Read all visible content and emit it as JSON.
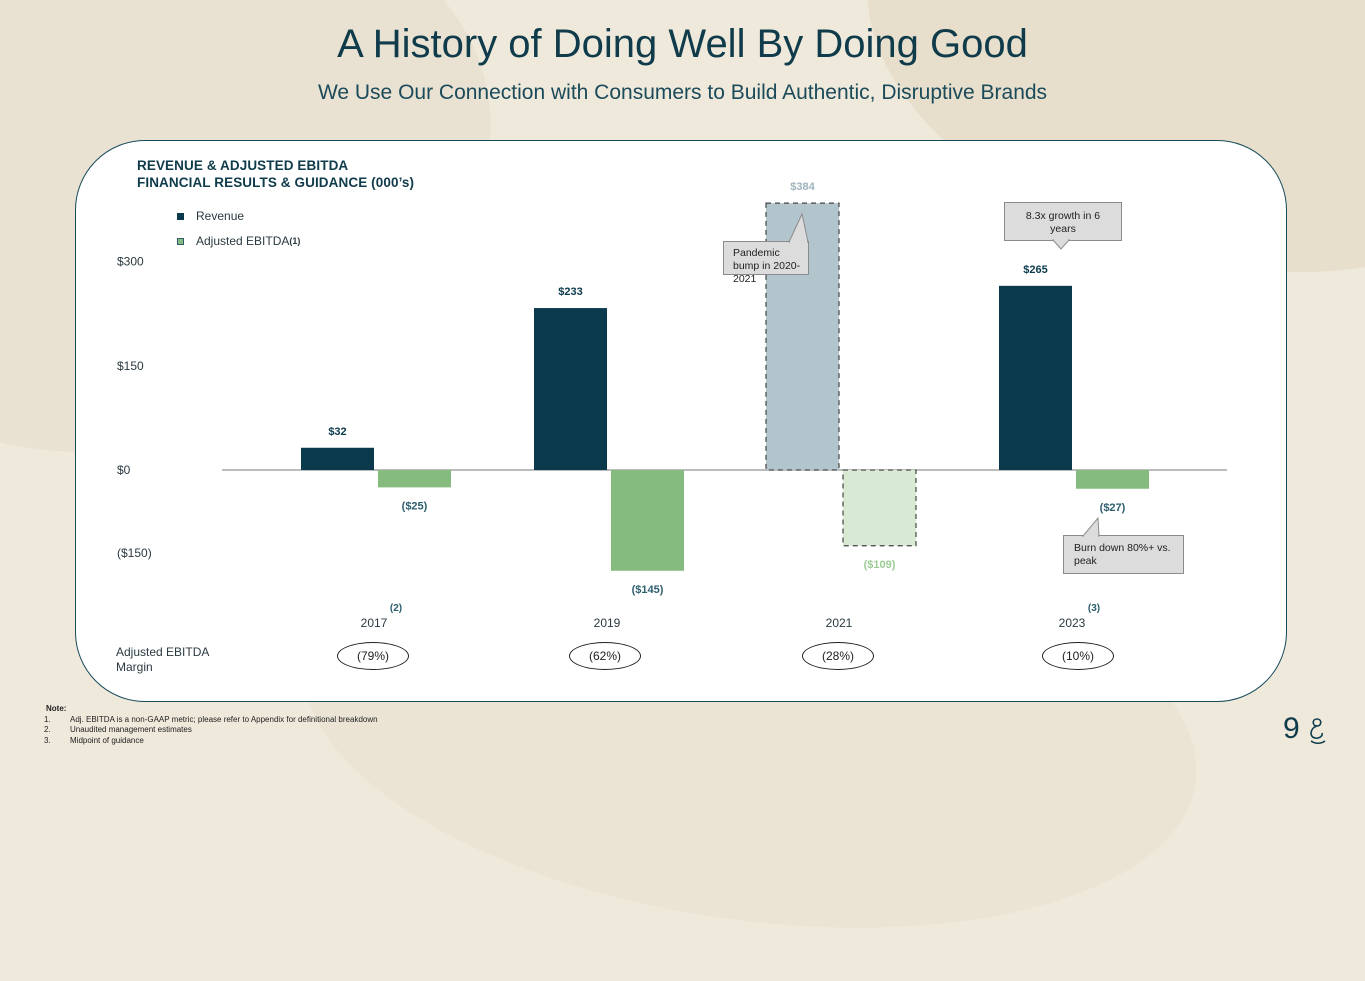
{
  "header": {
    "title": "A History of Doing Well By Doing Good",
    "subtitle": "We Use Our Connection with Consumers to Build Authentic, Disruptive Brands"
  },
  "chart_heading": {
    "line1": "REVENUE & ADJUSTED EBITDA",
    "line2": "FINANCIAL RESULTS & GUIDANCE (000’s)"
  },
  "legend": {
    "revenue": "Revenue",
    "ebitda": "Adjusted EBITDA",
    "ebitda_note": "(1)"
  },
  "colors": {
    "revenue": "#0b3a4c",
    "ebitda": "#86bb80",
    "revenue_projected": "#b3c5cc",
    "ebitda_projected": "#d8ead4",
    "revenue_label": "#0b3a4c",
    "ebitda_label": "#2d5e6e",
    "faded_revenue_label": "#9eb3bb",
    "faded_ebitda_label": "#9ccb95"
  },
  "chart_data": {
    "type": "bar",
    "title": "REVENUE & ADJUSTED EBITDA FINANCIAL RESULTS & GUIDANCE (000’s)",
    "categories": [
      "2017",
      "2019",
      "2021",
      "2023"
    ],
    "category_notes": [
      "(2)",
      "",
      "",
      "(3)"
    ],
    "series": [
      {
        "name": "Revenue",
        "values": [
          32,
          233,
          384,
          265
        ],
        "labels": [
          "$32",
          "$233",
          "$384",
          "$265"
        ]
      },
      {
        "name": "Adjusted EBITDA",
        "values": [
          -25,
          -145,
          -109,
          -27
        ],
        "labels": [
          "($25)",
          "($145)",
          "($109)",
          "($27)"
        ]
      }
    ],
    "highlighted_category": "2021",
    "y_ticks": [
      300,
      150,
      0,
      -150
    ],
    "y_tick_labels": [
      "$300",
      "$150",
      "$0",
      "($150)"
    ],
    "ylim": [
      -150,
      384
    ],
    "xlabel": "",
    "ylabel": ""
  },
  "callouts": {
    "pandemic": "Pandemic bump in 2020-2021",
    "growth": "8.3x growth in 6 years",
    "burn": "Burn down 80%+ vs. peak"
  },
  "margins": {
    "label": "Adjusted EBITDA Margin",
    "values": [
      "(79%)",
      "(62%)",
      "(28%)",
      "(10%)"
    ]
  },
  "notes": {
    "title": "Note:",
    "items": [
      {
        "num": "1.",
        "text": "Adj. EBITDA is a non-GAAP metric; please refer to Appendix for definitional breakdown"
      },
      {
        "num": "2.",
        "text": "Unaudited management estimates"
      },
      {
        "num": "3.",
        "text": "Midpoint of guidance"
      }
    ]
  },
  "page_number": "9"
}
